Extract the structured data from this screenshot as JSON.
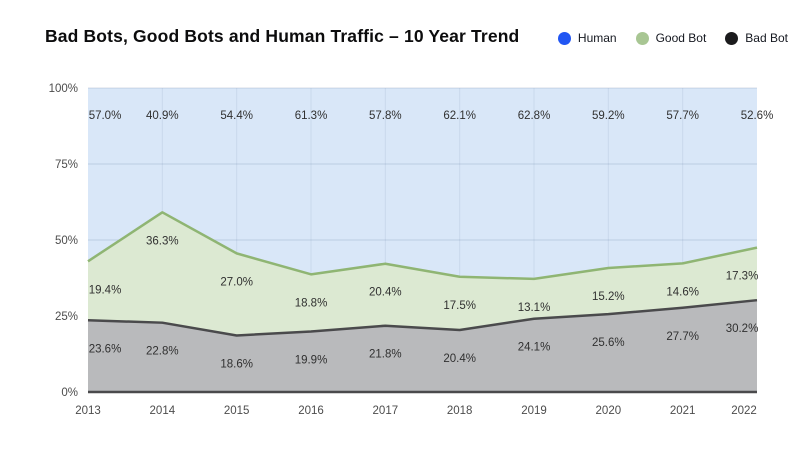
{
  "title": "Bad Bots, Good Bots and Human Traffic – 10 Year Trend",
  "legend": [
    {
      "label": "Human",
      "color": "#2156f3"
    },
    {
      "label": "Good Bot",
      "color": "#a8c693"
    },
    {
      "label": "Bad Bot",
      "color": "#1b1b1d"
    }
  ],
  "chart_data": {
    "type": "area",
    "stacked": true,
    "title": "Bad Bots, Good Bots and Human Traffic – 10 Year Trend",
    "x": [
      2013,
      2014,
      2015,
      2016,
      2017,
      2018,
      2019,
      2020,
      2021,
      2022
    ],
    "series": [
      {
        "name": "Human",
        "values": [
          57.0,
          40.9,
          54.4,
          61.3,
          57.8,
          62.1,
          62.8,
          59.2,
          57.7,
          52.6
        ],
        "fill": "#d9e7f8",
        "stroke": "none"
      },
      {
        "name": "Good Bot",
        "values": [
          19.4,
          36.3,
          27.0,
          18.8,
          20.4,
          17.5,
          13.1,
          15.2,
          14.6,
          17.3
        ],
        "fill": "#dce9d2",
        "stroke": "#8fb573"
      },
      {
        "name": "Bad Bot",
        "values": [
          23.6,
          22.8,
          18.6,
          19.9,
          21.8,
          20.4,
          24.1,
          25.6,
          27.7,
          30.2
        ],
        "fill": "#b9babc",
        "stroke": "#4a4a4c"
      }
    ],
    "y_ticks": [
      "100%",
      "75%",
      "50%",
      "25%",
      "0%"
    ],
    "ylim": [
      0,
      100
    ],
    "xlabel": "",
    "ylabel": "",
    "grid": true,
    "legend_position": "top-right",
    "value_label_format": "0.0%",
    "value_label_color": "#303030",
    "axis_tick_color": "#4c4c4c"
  }
}
